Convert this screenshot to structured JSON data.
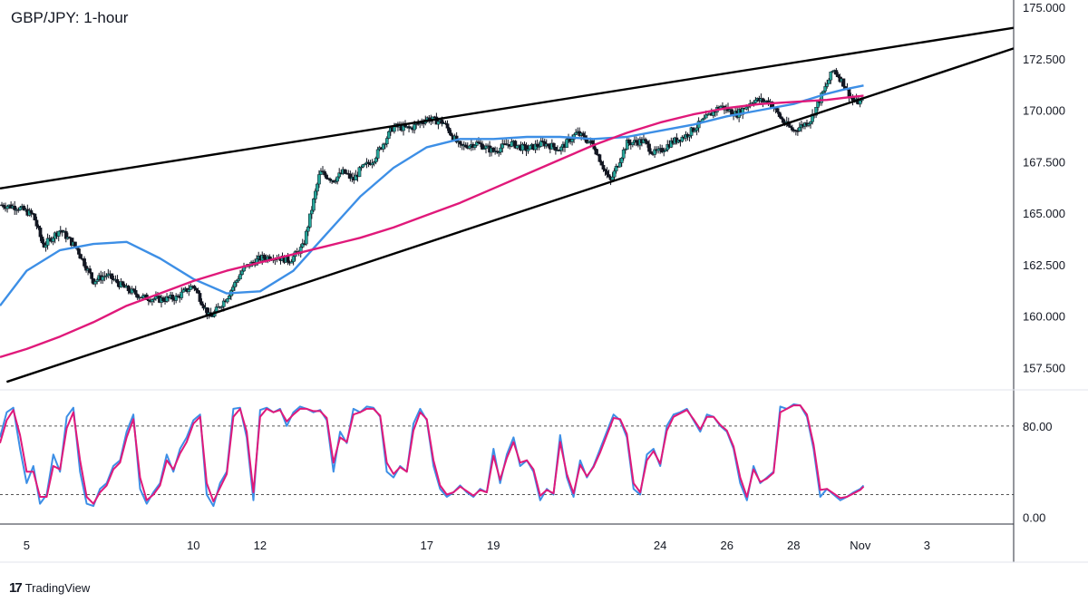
{
  "title": "GBP/JPY: 1-hour",
  "branding": {
    "icon": "tradingview-logo-icon",
    "name": "TradingView"
  },
  "colors": {
    "up": "#26a69a",
    "candle": "#131722",
    "ma_fast": "#3d8fe6",
    "ma_slow": "#e0197a",
    "stoch_k": "#3d8fe6",
    "stoch_d": "#e0197a",
    "trendline": "#000000"
  },
  "chart_data": [
    {
      "type": "line",
      "subtype": "candlestick-price",
      "title": "GBP/JPY: 1-hour",
      "ylim": [
        156.5,
        175.0
      ],
      "yticks": [
        "175.000",
        "172.500",
        "170.000",
        "167.500",
        "165.000",
        "162.500",
        "160.000",
        "157.500"
      ],
      "ytick_values": [
        175.0,
        172.5,
        170.0,
        167.5,
        165.0,
        162.5,
        160.0,
        157.5
      ],
      "xticks": [
        "5",
        "10",
        "12",
        "17",
        "19",
        "24",
        "26",
        "28",
        "Nov",
        "3"
      ],
      "xtick_positions": [
        1,
        6,
        8,
        13,
        15,
        20,
        22,
        24,
        26,
        28
      ],
      "xlim": [
        0.2,
        30.6
      ],
      "grid": false,
      "close_path": {
        "t": [
          0.2,
          0.7,
          1.2,
          1.5,
          2.0,
          2.5,
          3.0,
          3.4,
          4.0,
          4.5,
          5.0,
          5.5,
          6.0,
          6.5,
          7.0,
          7.5,
          8.0,
          8.4,
          8.9,
          9.3,
          9.8,
          10.2,
          10.5,
          10.8,
          11.0,
          11.4,
          12.0,
          12.5,
          13.0,
          13.5,
          14.0,
          14.5,
          15.0,
          15.5,
          16.0,
          16.5,
          17.0,
          17.5,
          18.0,
          18.5,
          19.0,
          19.5,
          19.8,
          20.0,
          20.3,
          20.8,
          21.3,
          21.8,
          22.3,
          22.8,
          23.3,
          23.7,
          24.0,
          24.5,
          24.9,
          25.2,
          25.5,
          25.8,
          26.1
        ],
        "close": [
          165.4,
          165.3,
          164.9,
          163.4,
          164.2,
          163.3,
          161.7,
          162.0,
          161.3,
          160.9,
          160.8,
          160.9,
          161.5,
          159.9,
          160.9,
          162.3,
          162.8,
          162.9,
          162.7,
          163.4,
          167.0,
          166.6,
          167.0,
          166.6,
          167.1,
          167.6,
          169.2,
          169.1,
          169.6,
          169.4,
          168.2,
          168.4,
          168.0,
          168.4,
          168.1,
          168.4,
          168.1,
          168.9,
          168.3,
          166.5,
          168.4,
          168.5,
          167.9,
          168.0,
          168.4,
          168.8,
          169.5,
          170.2,
          169.8,
          170.5,
          170.4,
          169.4,
          169.0,
          169.5,
          170.9,
          172.0,
          171.3,
          170.4,
          170.4
        ]
      },
      "series": [
        {
          "name": "",
          "kind": "moving-average-fast",
          "t": [
            0.2,
            1.0,
            2.0,
            3.0,
            4.0,
            5.0,
            6.0,
            7.0,
            8.0,
            9.0,
            10.0,
            11.0,
            12.0,
            13.0,
            14.0,
            15.0,
            16.0,
            17.0,
            18.0,
            19.0,
            20.0,
            21.0,
            22.0,
            23.0,
            24.0,
            25.0,
            25.5,
            26.1
          ],
          "values": [
            160.5,
            162.2,
            163.2,
            163.5,
            163.6,
            162.8,
            161.8,
            161.1,
            161.2,
            162.2,
            164.0,
            165.8,
            167.2,
            168.2,
            168.6,
            168.6,
            168.7,
            168.7,
            168.6,
            168.7,
            169.0,
            169.3,
            169.7,
            170.0,
            170.3,
            170.8,
            171.0,
            171.2
          ]
        },
        {
          "name": "",
          "kind": "moving-average-slow",
          "t": [
            0.2,
            1.0,
            2.0,
            3.0,
            4.0,
            5.0,
            6.0,
            7.0,
            8.0,
            9.0,
            10.0,
            11.0,
            12.0,
            13.0,
            14.0,
            15.0,
            16.0,
            17.0,
            18.0,
            19.0,
            20.0,
            21.0,
            22.0,
            23.0,
            24.0,
            25.0,
            25.5,
            26.1
          ],
          "values": [
            158.0,
            158.4,
            159.0,
            159.7,
            160.5,
            161.1,
            161.7,
            162.2,
            162.6,
            163.0,
            163.4,
            163.8,
            164.3,
            164.9,
            165.5,
            166.2,
            166.9,
            167.6,
            168.3,
            168.9,
            169.4,
            169.8,
            170.1,
            170.3,
            170.4,
            170.5,
            170.6,
            170.7
          ]
        }
      ],
      "trendlines": [
        {
          "name": "",
          "from": [
            0.2,
            166.2
          ],
          "to": [
            30.6,
            174.0
          ]
        },
        {
          "name": "",
          "from": [
            0.4,
            156.8
          ],
          "to": [
            30.6,
            173.0
          ]
        }
      ]
    },
    {
      "type": "line",
      "subtype": "stochastic-oscillator",
      "ylim": [
        -5,
        110
      ],
      "yticks": [
        "80.00",
        "0.00"
      ],
      "ytick_values": [
        80,
        0
      ],
      "reference_lines": [
        80,
        20
      ],
      "series": [
        {
          "name": "",
          "kind": "stoch-k",
          "t": [
            0.2,
            0.4,
            0.6,
            0.8,
            1.0,
            1.2,
            1.4,
            1.6,
            1.8,
            2.0,
            2.2,
            2.4,
            2.6,
            2.8,
            3.0,
            3.2,
            3.4,
            3.6,
            3.8,
            4.0,
            4.2,
            4.4,
            4.6,
            4.8,
            5.0,
            5.2,
            5.4,
            5.6,
            5.8,
            6.0,
            6.2,
            6.4,
            6.6,
            6.8,
            7.0,
            7.2,
            7.4,
            7.6,
            7.8,
            8.0,
            8.2,
            8.4,
            8.6,
            8.8,
            9.0,
            9.2,
            9.4,
            9.6,
            9.8,
            10.0,
            10.2,
            10.4,
            10.6,
            10.8,
            11.0,
            11.2,
            11.4,
            11.6,
            11.8,
            12.0,
            12.2,
            12.4,
            12.6,
            12.8,
            13.0,
            13.2,
            13.4,
            13.6,
            13.8,
            14.0,
            14.2,
            14.4,
            14.6,
            14.8,
            15.0,
            15.2,
            15.4,
            15.6,
            15.8,
            16.0,
            16.2,
            16.4,
            16.6,
            16.8,
            17.0,
            17.2,
            17.4,
            17.6,
            17.8,
            18.0,
            18.2,
            18.4,
            18.6,
            18.8,
            19.0,
            19.2,
            19.4,
            19.6,
            19.8,
            20.0,
            20.2,
            20.4,
            20.6,
            20.8,
            21.0,
            21.2,
            21.4,
            21.6,
            21.8,
            22.0,
            22.2,
            22.4,
            22.6,
            22.8,
            23.0,
            23.2,
            23.4,
            23.6,
            23.8,
            24.0,
            24.2,
            24.4,
            24.6,
            24.8,
            25.0,
            25.2,
            25.4,
            25.6,
            25.8,
            26.0,
            26.1
          ],
          "values": [
            70,
            92,
            96,
            60,
            30,
            45,
            12,
            20,
            55,
            40,
            88,
            96,
            40,
            12,
            10,
            25,
            30,
            45,
            50,
            75,
            90,
            25,
            12,
            22,
            30,
            55,
            40,
            60,
            70,
            85,
            90,
            20,
            10,
            30,
            40,
            95,
            96,
            70,
            15,
            94,
            96,
            92,
            95,
            80,
            92,
            97,
            95,
            92,
            94,
            85,
            40,
            75,
            65,
            95,
            92,
            97,
            96,
            88,
            40,
            35,
            45,
            40,
            82,
            95,
            85,
            45,
            25,
            18,
            22,
            28,
            22,
            18,
            25,
            22,
            60,
            30,
            55,
            70,
            45,
            50,
            40,
            15,
            25,
            20,
            72,
            35,
            18,
            50,
            35,
            45,
            60,
            75,
            90,
            85,
            70,
            25,
            20,
            55,
            60,
            45,
            80,
            90,
            92,
            95,
            85,
            75,
            90,
            88,
            80,
            75,
            60,
            30,
            15,
            45,
            30,
            35,
            40,
            97,
            95,
            99,
            98,
            88,
            60,
            18,
            25,
            20,
            15,
            18,
            22,
            25,
            28
          ]
        },
        {
          "name": "",
          "kind": "stoch-d",
          "t": [
            0.2,
            0.4,
            0.6,
            0.8,
            1.0,
            1.2,
            1.4,
            1.6,
            1.8,
            2.0,
            2.2,
            2.4,
            2.6,
            2.8,
            3.0,
            3.2,
            3.4,
            3.6,
            3.8,
            4.0,
            4.2,
            4.4,
            4.6,
            4.8,
            5.0,
            5.2,
            5.4,
            5.6,
            5.8,
            6.0,
            6.2,
            6.4,
            6.6,
            6.8,
            7.0,
            7.2,
            7.4,
            7.6,
            7.8,
            8.0,
            8.2,
            8.4,
            8.6,
            8.8,
            9.0,
            9.2,
            9.4,
            9.6,
            9.8,
            10.0,
            10.2,
            10.4,
            10.6,
            10.8,
            11.0,
            11.2,
            11.4,
            11.6,
            11.8,
            12.0,
            12.2,
            12.4,
            12.6,
            12.8,
            13.0,
            13.2,
            13.4,
            13.6,
            13.8,
            14.0,
            14.2,
            14.4,
            14.6,
            14.8,
            15.0,
            15.2,
            15.4,
            15.6,
            15.8,
            16.0,
            16.2,
            16.4,
            16.6,
            16.8,
            17.0,
            17.2,
            17.4,
            17.6,
            17.8,
            18.0,
            18.2,
            18.4,
            18.6,
            18.8,
            19.0,
            19.2,
            19.4,
            19.6,
            19.8,
            20.0,
            20.2,
            20.4,
            20.6,
            20.8,
            21.0,
            21.2,
            21.4,
            21.6,
            21.8,
            22.0,
            22.2,
            22.4,
            22.6,
            22.8,
            23.0,
            23.2,
            23.4,
            23.6,
            23.8,
            24.0,
            24.2,
            24.4,
            24.6,
            24.8,
            25.0,
            25.2,
            25.4,
            25.6,
            25.8,
            26.0,
            26.1
          ],
          "values": [
            65,
            85,
            94,
            72,
            40,
            40,
            18,
            18,
            45,
            42,
            78,
            92,
            50,
            18,
            12,
            22,
            28,
            42,
            48,
            70,
            86,
            35,
            15,
            20,
            28,
            50,
            42,
            56,
            66,
            82,
            88,
            30,
            14,
            26,
            38,
            88,
            95,
            75,
            22,
            88,
            95,
            92,
            94,
            84,
            90,
            95,
            95,
            93,
            93,
            87,
            48,
            70,
            66,
            90,
            92,
            95,
            95,
            89,
            48,
            38,
            44,
            40,
            76,
            92,
            86,
            50,
            28,
            20,
            22,
            27,
            23,
            19,
            24,
            22,
            54,
            33,
            52,
            66,
            48,
            50,
            42,
            19,
            24,
            21,
            66,
            38,
            21,
            46,
            36,
            44,
            57,
            72,
            87,
            86,
            73,
            30,
            22,
            50,
            58,
            47,
            76,
            88,
            91,
            94,
            86,
            77,
            88,
            88,
            81,
            76,
            62,
            35,
            18,
            42,
            31,
            34,
            39,
            92,
            95,
            98,
            98,
            90,
            64,
            24,
            25,
            21,
            17,
            18,
            21,
            24,
            27
          ]
        }
      ]
    }
  ]
}
